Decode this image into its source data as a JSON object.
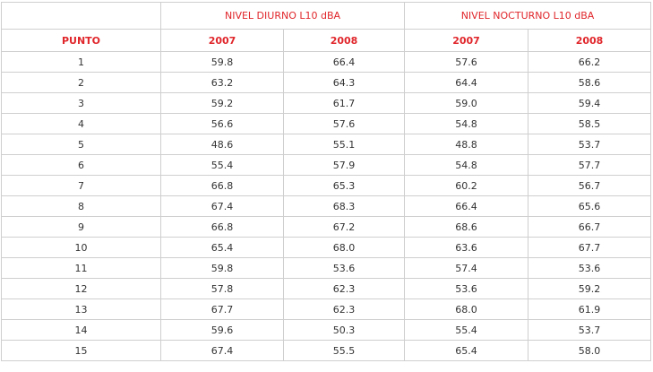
{
  "table": {
    "group_titles": [
      "NIVEL DIURNO L10 dBA",
      "NIVEL NOCTURNO L10 dBA"
    ],
    "columns": [
      "PUNTO",
      "2007",
      "2008",
      "2007",
      "2008"
    ],
    "rows": [
      [
        "1",
        "59.8",
        "66.4",
        "57.6",
        "66.2"
      ],
      [
        "2",
        "63.2",
        "64.3",
        "64.4",
        "58.6"
      ],
      [
        "3",
        "59.2",
        "61.7",
        "59.0",
        "59.4"
      ],
      [
        "4",
        "56.6",
        "57.6",
        "54.8",
        "58.5"
      ],
      [
        "5",
        "48.6",
        "55.1",
        "48.8",
        "53.7"
      ],
      [
        "6",
        "55.4",
        "57.9",
        "54.8",
        "57.7"
      ],
      [
        "7",
        "66.8",
        "65.3",
        "60.2",
        "56.7"
      ],
      [
        "8",
        "67.4",
        "68.3",
        "66.4",
        "65.6"
      ],
      [
        "9",
        "66.8",
        "67.2",
        "68.6",
        "66.7"
      ],
      [
        "10",
        "65.4",
        "68.0",
        "63.6",
        "67.7"
      ],
      [
        "11",
        "59.8",
        "53.6",
        "57.4",
        "53.6"
      ],
      [
        "12",
        "57.8",
        "62.3",
        "53.6",
        "59.2"
      ],
      [
        "13",
        "67.7",
        "62.3",
        "68.0",
        "61.9"
      ],
      [
        "14",
        "59.6",
        "50.3",
        "55.4",
        "53.7"
      ],
      [
        "15",
        "67.4",
        "55.5",
        "65.4",
        "58.0"
      ]
    ]
  }
}
